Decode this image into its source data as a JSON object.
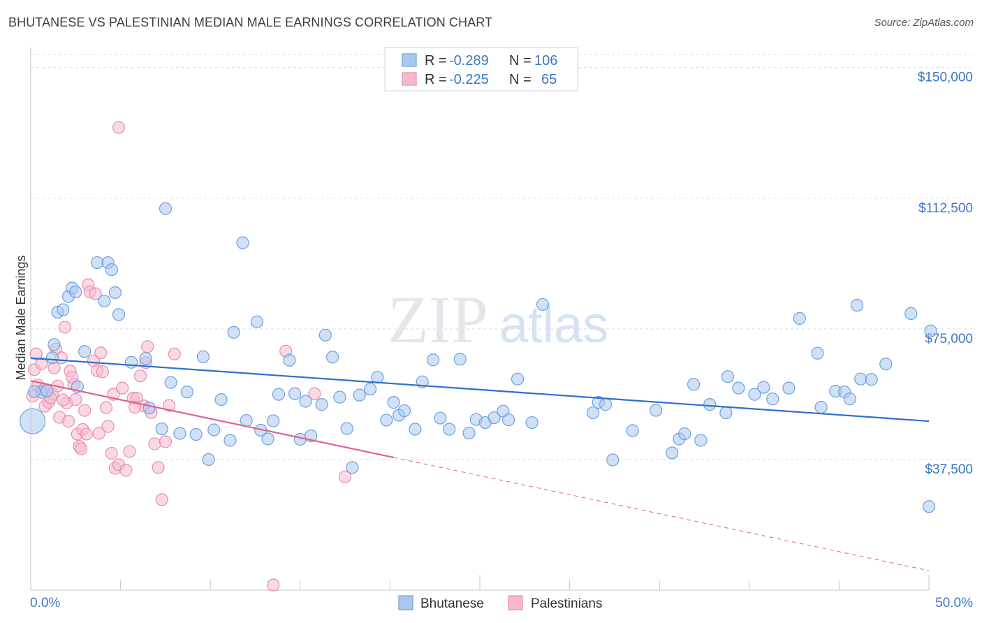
{
  "header": {
    "title": "BHUTANESE VS PALESTINIAN MEDIAN MALE EARNINGS CORRELATION CHART",
    "source": "Source: ZipAtlas.com"
  },
  "watermark": {
    "zip": "ZIP",
    "atlas": "atlas"
  },
  "colors": {
    "bhutanese_fill": "#aac8ef",
    "bhutanese_line": "#2f6fcc",
    "palestinian_fill": "#f5b9cd",
    "palestinian_line": "#e0628e",
    "tick_text": "#3b78c3",
    "grid": "#d8dde6"
  },
  "legend": {
    "rows": [
      {
        "r_label": "R = ",
        "r_value": "-0.289",
        "n_label": "N = ",
        "n_value": "106"
      },
      {
        "r_label": "R = ",
        "r_value": "-0.225",
        "n_label": "N = ",
        "n_value": "65"
      }
    ]
  },
  "bottom_legend": [
    "Bhutanese",
    "Palestinians"
  ],
  "chart_data": {
    "type": "scatter",
    "title": "BHUTANESE VS PALESTINIAN MEDIAN MALE EARNINGS CORRELATION CHART",
    "xlabel": "",
    "ylabel": "Median Male Earnings",
    "xlim": [
      0,
      50
    ],
    "ylim": [
      0,
      153750
    ],
    "x_tick_labels": [
      "0.0%",
      "50.0%"
    ],
    "y_ticks": [
      37500,
      75000,
      112500,
      150000
    ],
    "y_tick_labels": [
      "$37,500",
      "$75,000",
      "$112,500",
      "$150,000"
    ],
    "grid": true,
    "legend_position": "top-center",
    "series": [
      {
        "name": "Bhutanese",
        "r": -0.289,
        "n": 106,
        "trend": {
          "x": [
            0,
            50
          ],
          "y": [
            66600,
            48500
          ],
          "style": "solid"
        },
        "points": [
          [
            0.1,
            48500
          ],
          [
            0.6,
            56800
          ],
          [
            0.9,
            57200
          ],
          [
            1.2,
            66700
          ],
          [
            1.3,
            70500
          ],
          [
            1.5,
            79800
          ],
          [
            1.8,
            80500
          ],
          [
            2.1,
            84300
          ],
          [
            2.3,
            86700
          ],
          [
            2.5,
            85600
          ],
          [
            3.7,
            94000
          ],
          [
            2.6,
            58400
          ],
          [
            3.0,
            68500
          ],
          [
            4.1,
            83000
          ],
          [
            4.3,
            94000
          ],
          [
            4.5,
            92000
          ],
          [
            4.7,
            85400
          ],
          [
            4.9,
            79100
          ],
          [
            5.6,
            65400
          ],
          [
            6.4,
            66500
          ],
          [
            6.6,
            52300
          ],
          [
            7.3,
            46300
          ],
          [
            7.5,
            109500
          ],
          [
            7.8,
            59600
          ],
          [
            8.3,
            45000
          ],
          [
            8.7,
            56900
          ],
          [
            9.2,
            44700
          ],
          [
            9.6,
            67000
          ],
          [
            9.9,
            37500
          ],
          [
            10.2,
            46000
          ],
          [
            11.1,
            43000
          ],
          [
            10.6,
            54700
          ],
          [
            11.8,
            99700
          ],
          [
            11.3,
            74000
          ],
          [
            12.0,
            48700
          ],
          [
            12.6,
            77000
          ],
          [
            12.8,
            45900
          ],
          [
            13.2,
            43400
          ],
          [
            13.5,
            48600
          ],
          [
            13.8,
            56200
          ],
          [
            14.4,
            66000
          ],
          [
            14.7,
            56400
          ],
          [
            15.0,
            43300
          ],
          [
            15.3,
            54200
          ],
          [
            15.6,
            44300
          ],
          [
            16.2,
            53300
          ],
          [
            16.4,
            73200
          ],
          [
            16.8,
            66900
          ],
          [
            17.2,
            55400
          ],
          [
            17.6,
            46400
          ],
          [
            17.9,
            35200
          ],
          [
            18.3,
            56000
          ],
          [
            18.9,
            57700
          ],
          [
            19.3,
            61100
          ],
          [
            19.8,
            48800
          ],
          [
            20.2,
            53900
          ],
          [
            20.5,
            50200
          ],
          [
            20.8,
            51500
          ],
          [
            21.4,
            46200
          ],
          [
            21.8,
            59800
          ],
          [
            22.4,
            66100
          ],
          [
            22.8,
            49400
          ],
          [
            23.3,
            46200
          ],
          [
            23.9,
            66300
          ],
          [
            24.4,
            45100
          ],
          [
            24.8,
            49000
          ],
          [
            25.3,
            48100
          ],
          [
            25.8,
            49500
          ],
          [
            26.3,
            51400
          ],
          [
            26.6,
            48900
          ],
          [
            27.1,
            60600
          ],
          [
            27.9,
            48100
          ],
          [
            28.5,
            82000
          ],
          [
            31.3,
            50900
          ],
          [
            31.6,
            53900
          ],
          [
            32.0,
            53300
          ],
          [
            32.4,
            37400
          ],
          [
            33.5,
            45800
          ],
          [
            34.8,
            51600
          ],
          [
            35.7,
            39400
          ],
          [
            36.1,
            43400
          ],
          [
            36.4,
            44900
          ],
          [
            37.3,
            43000
          ],
          [
            36.9,
            59100
          ],
          [
            37.8,
            53300
          ],
          [
            38.7,
            50900
          ],
          [
            38.8,
            61300
          ],
          [
            39.4,
            58000
          ],
          [
            40.3,
            56200
          ],
          [
            40.8,
            58200
          ],
          [
            41.3,
            54900
          ],
          [
            42.2,
            58000
          ],
          [
            42.8,
            78000
          ],
          [
            43.8,
            68000
          ],
          [
            44.0,
            52500
          ],
          [
            44.8,
            57100
          ],
          [
            45.3,
            56900
          ],
          [
            45.6,
            54900
          ],
          [
            46.0,
            81800
          ],
          [
            46.2,
            60600
          ],
          [
            46.8,
            60500
          ],
          [
            47.6,
            64900
          ],
          [
            49.0,
            79400
          ],
          [
            50.1,
            74400
          ],
          [
            50.0,
            24000
          ],
          [
            0.2,
            57000
          ]
        ]
      },
      {
        "name": "Palestinians",
        "r": -0.225,
        "n": 65,
        "trend": {
          "x": [
            0,
            20.2,
            50
          ],
          "y": [
            60100,
            38100,
            5600
          ],
          "style": "solid-then-dashed"
        },
        "points": [
          [
            0.1,
            55700
          ],
          [
            0.2,
            63300
          ],
          [
            0.4,
            58900
          ],
          [
            0.6,
            65000
          ],
          [
            0.8,
            52800
          ],
          [
            1.0,
            53900
          ],
          [
            1.2,
            56300
          ],
          [
            1.3,
            63800
          ],
          [
            1.4,
            69200
          ],
          [
            1.6,
            49600
          ],
          [
            1.7,
            66700
          ],
          [
            1.9,
            75500
          ],
          [
            2.0,
            53700
          ],
          [
            2.1,
            48500
          ],
          [
            2.2,
            62900
          ],
          [
            2.4,
            59100
          ],
          [
            2.5,
            54700
          ],
          [
            2.6,
            44800
          ],
          [
            2.7,
            41300
          ],
          [
            2.8,
            40600
          ],
          [
            2.9,
            46100
          ],
          [
            3.0,
            51600
          ],
          [
            3.2,
            87700
          ],
          [
            3.3,
            85600
          ],
          [
            3.5,
            65800
          ],
          [
            3.6,
            85100
          ],
          [
            3.7,
            63000
          ],
          [
            3.9,
            68100
          ],
          [
            4.0,
            62700
          ],
          [
            4.2,
            52400
          ],
          [
            4.3,
            47000
          ],
          [
            4.5,
            39300
          ],
          [
            4.7,
            35000
          ],
          [
            4.9,
            36000
          ],
          [
            5.1,
            58000
          ],
          [
            5.3,
            34400
          ],
          [
            5.5,
            39800
          ],
          [
            5.7,
            55100
          ],
          [
            5.9,
            55100
          ],
          [
            6.1,
            61500
          ],
          [
            6.3,
            52900
          ],
          [
            6.5,
            69900
          ],
          [
            6.7,
            51000
          ],
          [
            6.9,
            42000
          ],
          [
            7.1,
            35200
          ],
          [
            7.3,
            26000
          ],
          [
            7.5,
            42600
          ],
          [
            7.7,
            53000
          ],
          [
            8.0,
            67800
          ],
          [
            13.5,
            1500
          ],
          [
            14.2,
            68600
          ],
          [
            15.8,
            56400
          ],
          [
            17.5,
            32500
          ],
          [
            0.7,
            57500
          ],
          [
            1.1,
            55200
          ],
          [
            1.5,
            58600
          ],
          [
            2.3,
            61100
          ],
          [
            3.8,
            45000
          ],
          [
            4.6,
            56200
          ],
          [
            4.9,
            132800
          ],
          [
            6.4,
            65300
          ],
          [
            0.3,
            67800
          ],
          [
            1.8,
            54600
          ],
          [
            3.1,
            44800
          ],
          [
            5.8,
            52500
          ]
        ]
      }
    ]
  }
}
